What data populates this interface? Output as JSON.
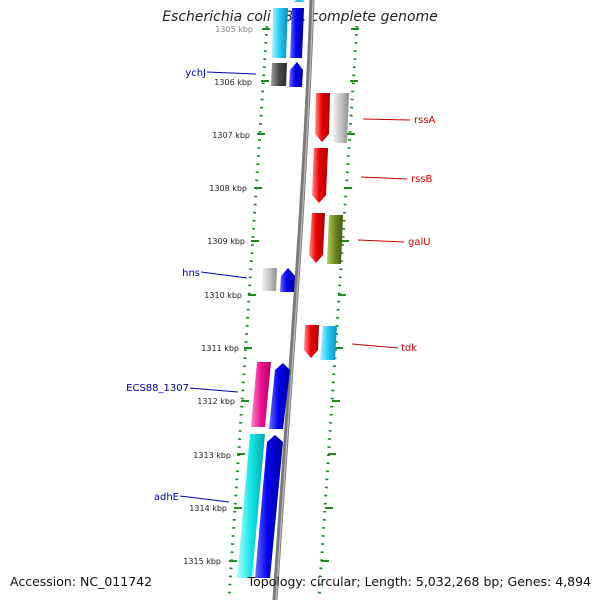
{
  "title": "Escherichia coli S88, complete genome",
  "accession": "Accession: NC_011742",
  "summary": "Topology: circular; Length: 5,032,268 bp; Genes: 4,894",
  "axis_labels": [
    "1305 kbp",
    "1306 kbp",
    "1307 kbp",
    "1308 kbp",
    "1309 kbp",
    "1310 kbp",
    "1311 kbp",
    "1312 kbp",
    "1313 kbp",
    "1314 kbp",
    "1315 kbp"
  ],
  "gene_labels": {
    "left": [
      "ychJ",
      "hns",
      "ECS88_1307",
      "adhE"
    ],
    "right": [
      "rssA",
      "rssB",
      "galU",
      "tdk"
    ]
  },
  "colors": {
    "label_left": "#0000aa",
    "label_right": "#cc0000",
    "backbone": "#888888",
    "tick": "#228822"
  }
}
